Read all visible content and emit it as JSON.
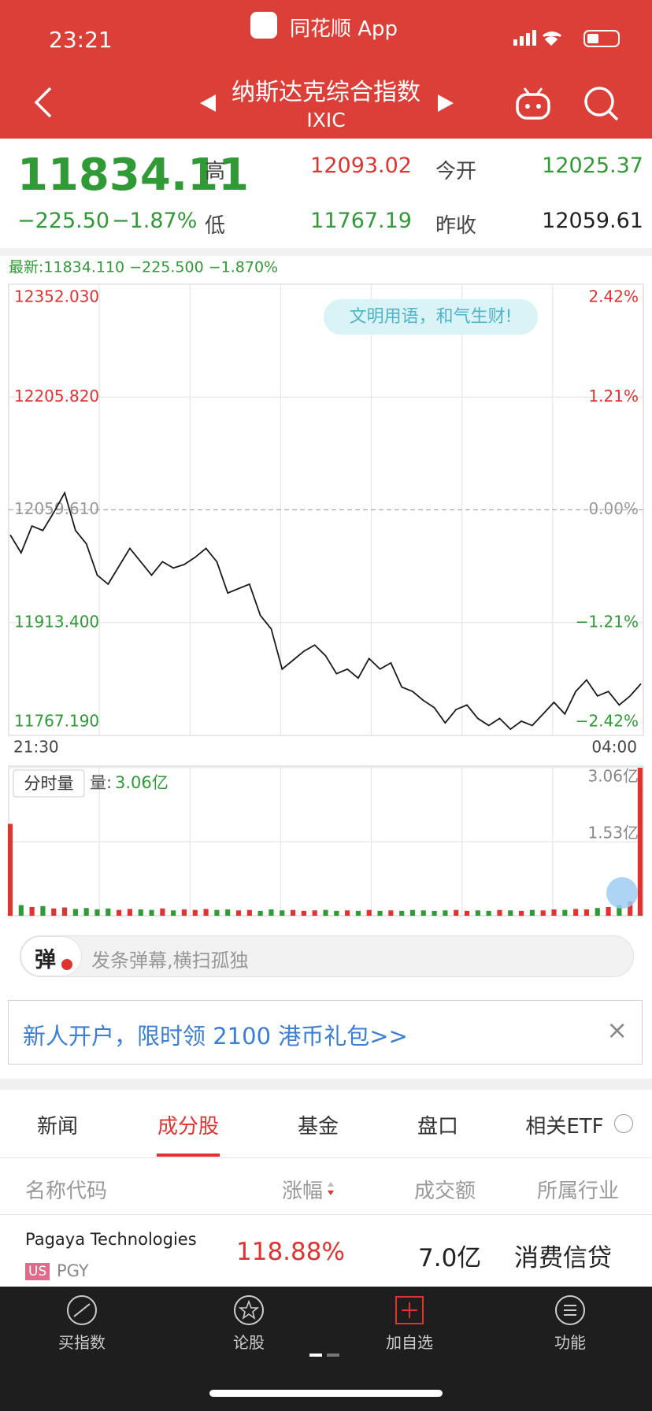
{
  "status_bar": {
    "time": "23:21",
    "app": "同花顺 App"
  },
  "header": {
    "title": "纳斯达克综合指数",
    "code": "IXIC"
  },
  "quote": {
    "price": "11834.11",
    "change": "−225.50",
    "change_pct": "−1.87%",
    "high_label": "高",
    "high": "12093.02",
    "open_label": "今开",
    "open": "12025.37",
    "low_label": "低",
    "low": "11767.19",
    "prev_close_label": "昨收",
    "prev_close": "12059.61"
  },
  "chart_data": [
    {
      "type": "line",
      "latest": "最新:11834.110 −225.500 −1.870%",
      "banner": "文明用语，和气生财!",
      "xlabels": [
        "21:30",
        "04:00"
      ],
      "color": "#1a1a1a",
      "up_color": "#e0322f",
      "down_color": "#2f9a36",
      "mid_color": "#999999",
      "values": [
        12027.1,
        12003.9,
        12038.7,
        12032.9,
        12056.1,
        12081.7,
        12032.9,
        12015.5,
        11974.9,
        11963.3,
        11986.5,
        12009.7,
        11992.3,
        11974.9,
        11992.3,
        11984.2,
        11988.8,
        11998.1,
        12009.7,
        11992.3,
        11951.7,
        11957.5,
        11963.3,
        11922.7,
        11905.3,
        11853.1,
        11864.7,
        11876.3,
        11884.4,
        11870.5,
        11847.2,
        11853.1,
        11841.5,
        11866.9,
        11853.1,
        11861.2,
        11829.9,
        11824.1,
        11812.4,
        11803.1,
        11783.4,
        11800.8,
        11806.6,
        11789.2,
        11780.0,
        11789.2,
        11775.3,
        11785.7,
        11780.0,
        11795.0,
        11810.1,
        11795.0,
        11824.1,
        11839.1,
        11818.3,
        11824.1,
        11806.6,
        11818.3,
        11834.11
      ],
      "ylim": [
        11767.19,
        12352.03
      ],
      "yticks": [
        {
          "value": 12352.03,
          "label": "12352.030"
        },
        {
          "value": 12205.82,
          "label": "12205.820"
        },
        {
          "value": 12059.61,
          "label": "12059.610"
        },
        {
          "value": 11913.4,
          "label": "11913.400"
        },
        {
          "value": 11767.19,
          "label": "11767.190"
        }
      ],
      "y2lim": [
        -2.42,
        2.42
      ],
      "y2ticks": [
        {
          "value": 2.42,
          "label": "2.42%"
        },
        {
          "value": 1.21,
          "label": "1.21%"
        },
        {
          "value": 0,
          "label": "0.00%"
        },
        {
          "value": -1.21,
          "label": "−1.21%"
        },
        {
          "value": -2.42,
          "label": "−2.42%"
        }
      ],
      "grid": true
    },
    {
      "type": "bar",
      "label": "分时量",
      "volume_label": "量:",
      "volume_value": "3.06亿",
      "up_color": "#e0322f",
      "down_color": "#2f9a36",
      "values": [
        1.9,
        0.22,
        0.18,
        0.2,
        0.15,
        0.17,
        0.14,
        0.16,
        0.13,
        0.15,
        0.12,
        0.14,
        0.13,
        0.12,
        0.15,
        0.11,
        0.13,
        0.12,
        0.14,
        0.12,
        0.13,
        0.11,
        0.12,
        0.1,
        0.13,
        0.11,
        0.12,
        0.1,
        0.11,
        0.12,
        0.1,
        0.11,
        0.1,
        0.12,
        0.1,
        0.11,
        0.1,
        0.12,
        0.11,
        0.1,
        0.11,
        0.12,
        0.1,
        0.11,
        0.1,
        0.12,
        0.11,
        0.1,
        0.12,
        0.11,
        0.13,
        0.12,
        0.14,
        0.13,
        0.16,
        0.18,
        0.22,
        0.3,
        3.06
      ],
      "ylim": [
        0,
        3.06
      ],
      "yticks": [
        {
          "value": 1.53,
          "label": "1.53亿"
        },
        {
          "value": 3.06,
          "label": "3.06亿"
        }
      ],
      "grid": true
    }
  ],
  "danmu": {
    "button": "弹",
    "placeholder": "发条弹幕,横扫孤独"
  },
  "ad": {
    "text": "新人开户，限时领 2100 港币礼包>>",
    "close": "×"
  },
  "tabs": [
    "新闻",
    "成分股",
    "基金",
    "盘口",
    "相关ETF"
  ],
  "active_tab": 1,
  "table": {
    "headers": [
      "名称代码",
      "涨幅",
      "成交额",
      "所属行业"
    ],
    "rows": [
      {
        "name": "Pagaya Technologies",
        "market": "US",
        "code": "PGY",
        "change": "118.88%",
        "turnover": "7.0亿",
        "industry": "消费信贷"
      }
    ]
  },
  "nav": [
    "买指数",
    "论股",
    "加自选",
    "功能"
  ]
}
